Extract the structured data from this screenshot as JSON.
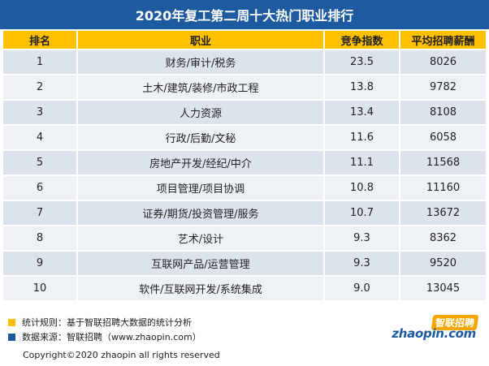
{
  "title": "2020年复工第二周十大热门职业排行",
  "colors": {
    "header_bg": "#1d5aa0",
    "accent": "#ffc000",
    "row_odd": "#dde3ec",
    "row_even": "#eef1f5",
    "brand_orange": "#f7a600"
  },
  "table": {
    "headers": [
      "排名",
      "职业",
      "竞争指数",
      "平均招聘薪酬"
    ],
    "rows": [
      [
        "1",
        "财务/审计/税务",
        "23.5",
        "8026"
      ],
      [
        "2",
        "土木/建筑/装修/市政工程",
        "13.8",
        "9782"
      ],
      [
        "3",
        "人力资源",
        "13.4",
        "8108"
      ],
      [
        "4",
        "行政/后勤/文秘",
        "11.6",
        "6058"
      ],
      [
        "5",
        "房地产开发/经纪/中介",
        "11.1",
        "11568"
      ],
      [
        "6",
        "项目管理/项目协调",
        "10.8",
        "11160"
      ],
      [
        "7",
        "证券/期货/投资管理/服务",
        "10.7",
        "13672"
      ],
      [
        "8",
        "艺术/设计",
        "9.3",
        "8362"
      ],
      [
        "9",
        "互联网产品/运营管理",
        "9.3",
        "9520"
      ],
      [
        "10",
        "软件/互联网开发/系统集成",
        "9.0",
        "13045"
      ]
    ]
  },
  "notes": [
    {
      "text": "统计规则：基于智联招聘大数据的统计分析",
      "color": "#ffc000"
    },
    {
      "text": "数据来源：智联招聘（www.zhaopin.com）",
      "color": "#1d5aa0"
    }
  ],
  "copyright": "Copyright©2020 zhaopin all rights reserved",
  "logo": {
    "cn": "智联招聘",
    "en": "zhaopin.com"
  }
}
